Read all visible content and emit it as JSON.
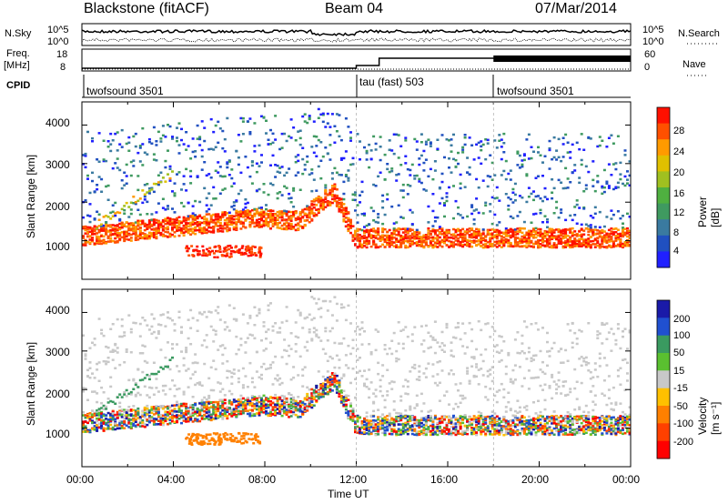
{
  "header": {
    "station": "Blackstone (fitACF)",
    "beam": "Beam 04",
    "date": "07/Mar/2014"
  },
  "strip_labels": {
    "nsky": "N.Sky",
    "nsearch": "N.Search",
    "freq": "Freq.",
    "freq_unit": "[MHz]",
    "nave": "Nave",
    "cpid": "CPID",
    "nsky_ticks": [
      "10^5",
      "10^0"
    ],
    "nsearch_ticks": [
      "10^5",
      "10^0"
    ],
    "freq_ticks": [
      "18",
      "8"
    ],
    "nave_ticks": [
      "60",
      "0"
    ]
  },
  "cpid_segments": [
    {
      "label": "twofsound 3501",
      "start_h": 0
    },
    {
      "label": "tau (fast) 503",
      "start_h": 12
    },
    {
      "label": "twofsound 3501",
      "start_h": 18
    }
  ],
  "chart_data": [
    {
      "type": "heatmap",
      "panel": "power",
      "ylabel": "Slant Range [km]",
      "ylim": [
        0,
        4600
      ],
      "yticks": [
        1000,
        2000,
        3000,
        4000
      ],
      "xlim": [
        0,
        24
      ],
      "colorbar": {
        "label": "Power [dB]",
        "ticks": [
          "28",
          "24",
          "20",
          "16",
          "12",
          "8",
          "4"
        ],
        "colors": [
          "#2020ff",
          "#2050c0",
          "#3a7aa0",
          "#3f9a60",
          "#4fb040",
          "#a0c020",
          "#e0c000",
          "#ff9a00",
          "#ff5000",
          "#ff1000"
        ]
      }
    },
    {
      "type": "heatmap",
      "panel": "velocity",
      "ylabel": "Slant Range [km]",
      "ylim": [
        0,
        4600
      ],
      "yticks": [
        1000,
        2000,
        3000,
        4000
      ],
      "xlim": [
        0,
        24
      ],
      "colorbar": {
        "label": "Velocity [m s⁻¹]",
        "ticks": [
          "200",
          "100",
          "50",
          "15",
          "-15",
          "-50",
          "-100",
          "-200"
        ],
        "colors": [
          "#1a1aa8",
          "#2050d0",
          "#3a9a60",
          "#5ac030",
          "#c8c8c8",
          "#ffc000",
          "#ff8000",
          "#ff4000",
          "#ff0000"
        ]
      }
    }
  ],
  "x_axis": {
    "label": "Time UT",
    "ticks": [
      "00:00",
      "04:00",
      "08:00",
      "12:00",
      "16:00",
      "20:00",
      "00:00"
    ]
  }
}
